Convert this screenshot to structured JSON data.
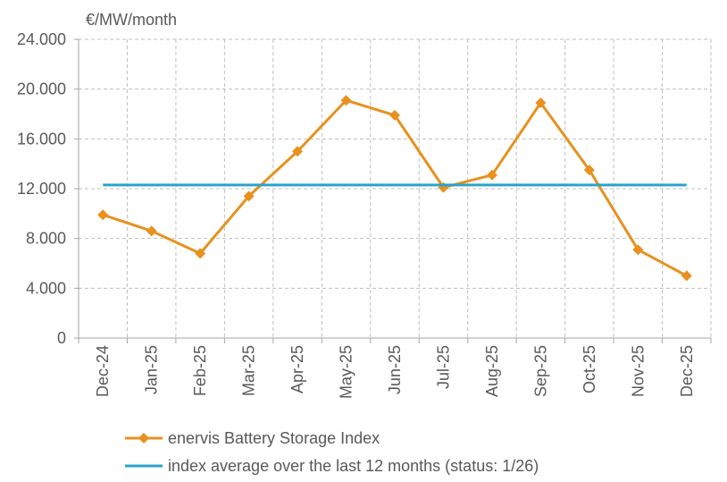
{
  "chart_data": {
    "type": "line",
    "ylabel": "€/MW/month",
    "categories": [
      "Dec-24",
      "Jan-25",
      "Feb-25",
      "Mar-25",
      "Apr-25",
      "May-25",
      "Jun-25",
      "Jul-25",
      "Aug-25",
      "Sep-25",
      "Oct-25",
      "Nov-25",
      "Dec-25"
    ],
    "ylim": [
      0,
      24000
    ],
    "yticks": [
      0,
      4000,
      8000,
      12000,
      16000,
      20000,
      24000
    ],
    "ytick_labels": [
      "0",
      "4.000",
      "8.000",
      "12.000",
      "16.000",
      "20.000",
      "24.000"
    ],
    "grid": true,
    "legend_position": "bottom",
    "series": [
      {
        "name": "enervis Battery Storage Index",
        "color": "#e8911e",
        "marker": "diamond",
        "values": [
          9900,
          8600,
          6800,
          11400,
          15000,
          19100,
          17900,
          12100,
          13100,
          18900,
          13500,
          7100,
          5000
        ]
      },
      {
        "name": "index average over the last 12 months (status: 1/26)",
        "color": "#2aa4c9",
        "marker": "none",
        "values": [
          12300,
          12300,
          12300,
          12300,
          12300,
          12300,
          12300,
          12300,
          12300,
          12300,
          12300,
          12300,
          12300
        ]
      }
    ]
  }
}
